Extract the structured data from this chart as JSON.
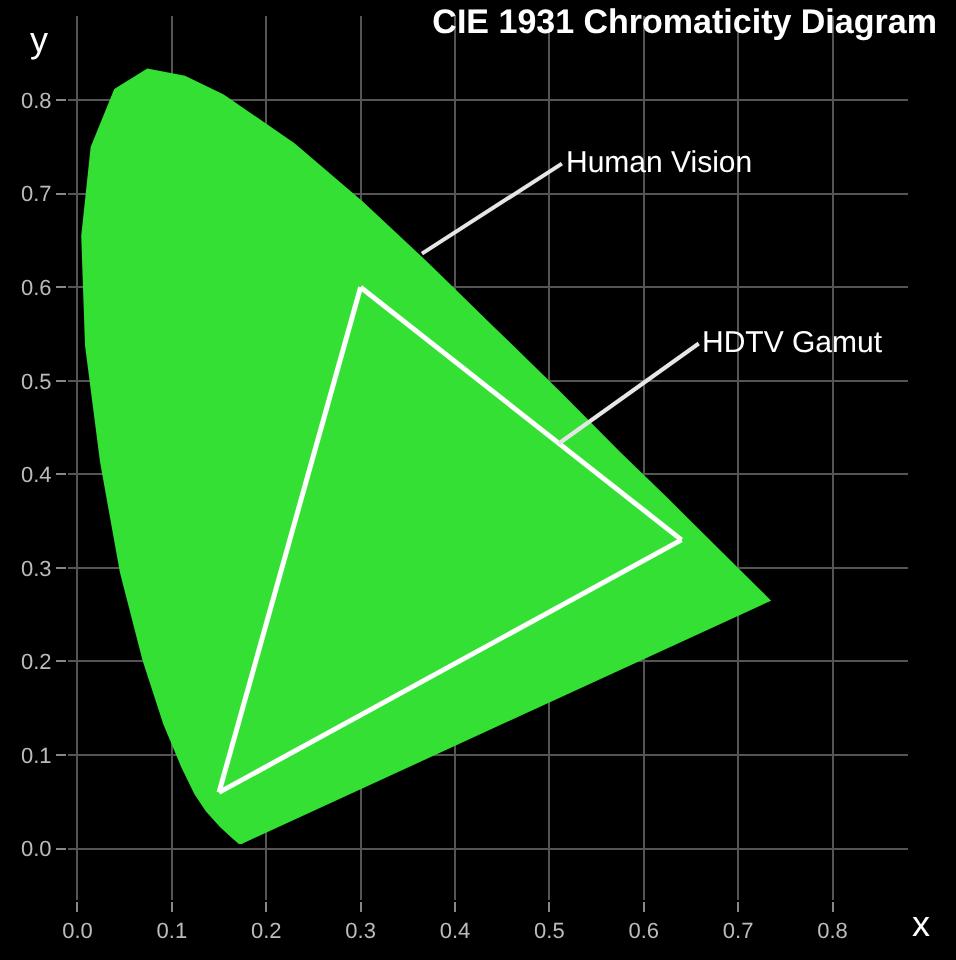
{
  "chart_data": {
    "type": "line",
    "title": "CIE 1931 Chromaticity Diagram",
    "xlabel": "x",
    "ylabel": "y",
    "series": [
      {
        "type": "area",
        "color": "#33e033",
        "x": [
          0.174,
          0.171,
          0.164,
          0.151,
          0.136,
          0.124,
          0.11,
          0.091,
          0.069,
          0.045,
          0.024,
          0.008,
          0.004,
          0.014,
          0.039,
          0.074,
          0.114,
          0.155,
          0.23,
          0.302,
          0.373,
          0.444,
          0.513,
          0.575,
          0.627,
          0.692,
          0.719,
          0.735
        ],
        "values": [
          0.005,
          0.005,
          0.011,
          0.023,
          0.04,
          0.058,
          0.087,
          0.133,
          0.201,
          0.295,
          0.413,
          0.538,
          0.655,
          0.75,
          0.812,
          0.834,
          0.826,
          0.806,
          0.754,
          0.692,
          0.625,
          0.555,
          0.487,
          0.424,
          0.373,
          0.308,
          0.281,
          0.265
        ]
      },
      {
        "type": "line",
        "color": "#ffffff",
        "x": [
          0.3,
          0.64
        ],
        "values": [
          0.6,
          0.33
        ]
      },
      {
        "type": "line",
        "color": "#ffffff",
        "x": [
          0.15,
          0.64
        ],
        "values": [
          0.06,
          0.33
        ]
      },
      {
        "color": "#ffffff",
        "x": [
          0.15,
          0.3
        ],
        "values": [
          0.06,
          0.6
        ]
      }
    ],
    "annotations": [
      {
        "text": "Human Vision",
        "x": 0.365,
        "y": 0.636
      },
      {
        "text": "HDTV Gamut",
        "x": 0.51,
        "y": 0.433
      }
    ],
    "xlim": [
      -0.01,
      0.88
    ],
    "ylim": [
      -0.055,
      0.89
    ],
    "xticks": [
      {
        "value": 0,
        "label": "0.0"
      },
      0.1,
      0.2,
      0.3,
      0.4,
      0.5,
      0.6,
      0.7,
      0.8
    ],
    "yticks": [
      {
        "value": 0,
        "label": "0.0"
      },
      0.1,
      0.2,
      0.3,
      0.4,
      0.5,
      0.6,
      0.7,
      0.8
    ],
    "grid": true,
    "legend": false
  }
}
